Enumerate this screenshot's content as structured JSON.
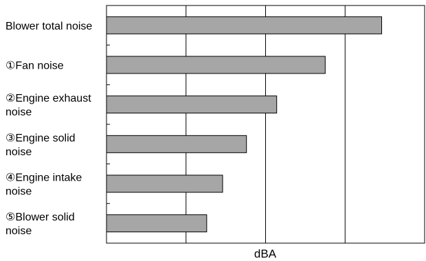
{
  "chart_data": {
    "type": "bar",
    "orientation": "horizontal",
    "title": "",
    "xlabel": "dBA",
    "ylabel": "",
    "categories": [
      "Blower total noise",
      "①Fan noise",
      "②Engine exhaust noise",
      "③Engine solid noise",
      "④Engine intake noise",
      "⑤Blower solid noise"
    ],
    "category_label_lines": [
      [
        "Blower total noise"
      ],
      [
        "①Fan noise"
      ],
      [
        "②Engine exhaust",
        "noise"
      ],
      [
        "③Engine solid",
        "noise"
      ],
      [
        "④Engine intake",
        "noise"
      ],
      [
        "⑤Blower solid",
        "noise"
      ]
    ],
    "values": [
      3.46,
      2.75,
      2.14,
      1.76,
      1.46,
      1.26
    ],
    "xlim": [
      0,
      4
    ],
    "x_tick_labels": [],
    "grid": "vertical",
    "bar_color": "#a6a6a6",
    "bar_edge_color": "#000000"
  }
}
